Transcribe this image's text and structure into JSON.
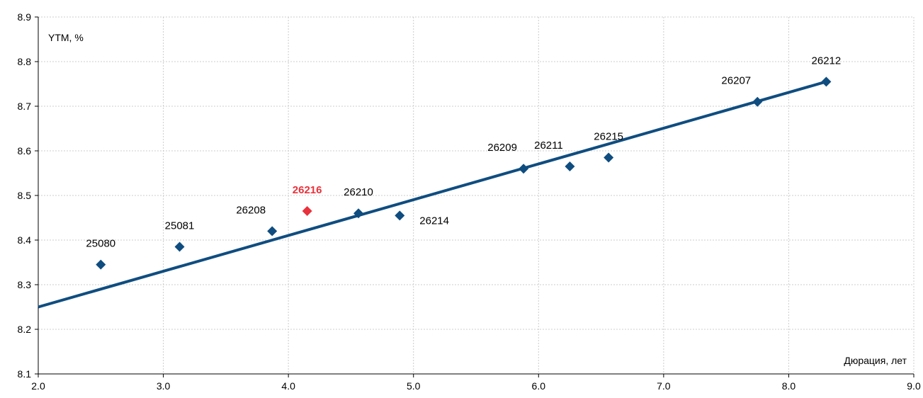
{
  "chart_data": {
    "type": "scatter",
    "xlabel": "Дюрация, лет",
    "ylabel": "YTM, %",
    "xlim": [
      2.0,
      9.0
    ],
    "ylim": [
      8.1,
      8.9
    ],
    "x_ticks": [
      "2.0",
      "3.0",
      "4.0",
      "5.0",
      "6.0",
      "7.0",
      "8.0",
      "9.0"
    ],
    "y_ticks": [
      "8.1",
      "8.2",
      "8.3",
      "8.4",
      "8.5",
      "8.6",
      "8.7",
      "8.8",
      "8.9"
    ],
    "grid": true,
    "colors": {
      "series": "#0f4d80",
      "highlight": "#e8323c",
      "grid": "#cccccc"
    },
    "points": [
      {
        "label": "25080",
        "x": 2.5,
        "y": 8.345,
        "highlight": false,
        "label_pos": "above"
      },
      {
        "label": "25081",
        "x": 3.13,
        "y": 8.385,
        "highlight": false,
        "label_pos": "above"
      },
      {
        "label": "26208",
        "x": 3.87,
        "y": 8.42,
        "highlight": false,
        "label_pos": "above-left"
      },
      {
        "label": "26216",
        "x": 4.15,
        "y": 8.465,
        "highlight": true,
        "label_pos": "above"
      },
      {
        "label": "26210",
        "x": 4.56,
        "y": 8.46,
        "highlight": false,
        "label_pos": "above"
      },
      {
        "label": "26214",
        "x": 4.89,
        "y": 8.455,
        "highlight": false,
        "label_pos": "right"
      },
      {
        "label": "26209",
        "x": 5.88,
        "y": 8.56,
        "highlight": false,
        "label_pos": "above-left"
      },
      {
        "label": "26211",
        "x": 6.25,
        "y": 8.565,
        "highlight": false,
        "label_pos": "above-left"
      },
      {
        "label": "26215",
        "x": 6.56,
        "y": 8.585,
        "highlight": false,
        "label_pos": "above"
      },
      {
        "label": "26207",
        "x": 7.75,
        "y": 8.71,
        "highlight": false,
        "label_pos": "above-left"
      },
      {
        "label": "26212",
        "x": 8.3,
        "y": 8.755,
        "highlight": false,
        "label_pos": "above"
      }
    ],
    "trendline": {
      "x": [
        2.0,
        8.3
      ],
      "y": [
        8.25,
        8.755
      ]
    }
  }
}
